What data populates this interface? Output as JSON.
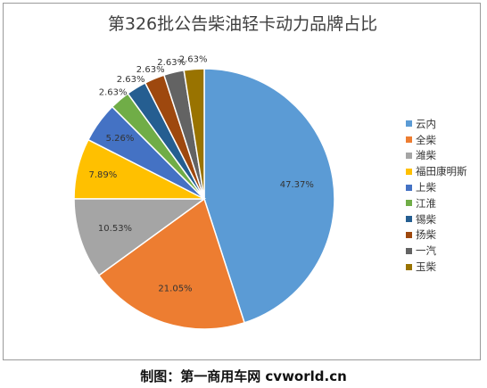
{
  "chart_data": {
    "type": "pie",
    "title": "第326批公告柴油轻卡动力品牌占比",
    "categories": [
      "云内",
      "全柴",
      "潍柴",
      "福田康明斯",
      "上柴",
      "江淮",
      "锡柴",
      "扬柴",
      "一汽",
      "玉柴"
    ],
    "values": [
      47.37,
      21.05,
      10.53,
      7.89,
      5.26,
      2.63,
      2.63,
      2.63,
      2.63,
      2.63
    ],
    "labels": [
      "47.37%",
      "21.05%",
      "10.53%",
      "7.89%",
      "5.26%",
      "2.63%",
      "2.63%",
      "2.63%",
      "2.63%",
      "2.63%"
    ],
    "colors": [
      "#5b9bd5",
      "#ed7d31",
      "#a5a5a5",
      "#ffc000",
      "#4472c4",
      "#70ad47",
      "#255e91",
      "#9e480e",
      "#636363",
      "#997300"
    ],
    "legend_position": "right",
    "start_angle": "12 o'clock",
    "direction": "clockwise"
  },
  "caption": "制图：第一商用车网 cvworld.cn"
}
